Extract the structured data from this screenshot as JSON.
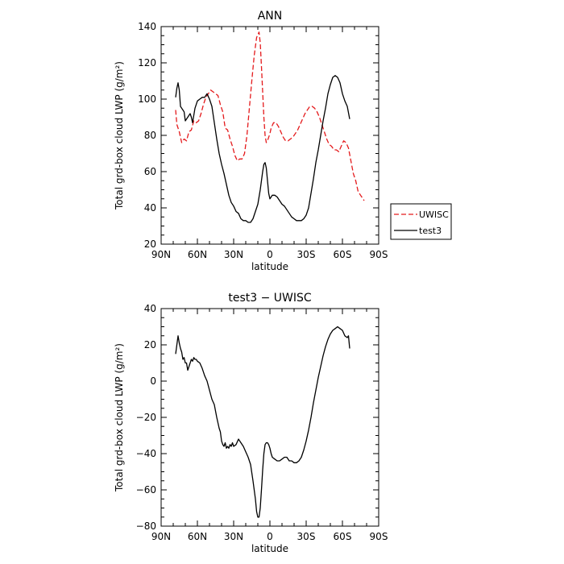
{
  "chart_data": [
    {
      "type": "line",
      "title": "ANN",
      "xlabel": "latitude",
      "ylabel": "Total grd-box cloud LWP (g/m²)",
      "xlim": [
        90,
        -90
      ],
      "ylim": [
        20,
        140
      ],
      "x_ticks": [
        "90N",
        "60N",
        "30N",
        "0",
        "30S",
        "60S",
        "90S"
      ],
      "y_ticks": [
        "20",
        "40",
        "60",
        "80",
        "100",
        "120",
        "140"
      ],
      "legend": {
        "placement": "right-outside",
        "entries": [
          "UWISC",
          "test3"
        ]
      },
      "series": [
        {
          "name": "UWISC",
          "color": "#e41a1c",
          "style": "dashed",
          "x": [
            78,
            77,
            75,
            73,
            71,
            69,
            67,
            65,
            63,
            61,
            59,
            57,
            55,
            53,
            51,
            49,
            47,
            45,
            43,
            41,
            39,
            37,
            35,
            33,
            31,
            29,
            27,
            25,
            23,
            21,
            19,
            17,
            15,
            13,
            11,
            9,
            8,
            7,
            6,
            5,
            4,
            3,
            2,
            1,
            0,
            -1,
            -3,
            -5,
            -7,
            -9,
            -11,
            -13,
            -15,
            -17,
            -19,
            -21,
            -23,
            -25,
            -27,
            -29,
            -31,
            -33,
            -35,
            -37,
            -39,
            -41,
            -43,
            -45,
            -47,
            -49,
            -51,
            -53,
            -55,
            -57,
            -59,
            -61,
            -63,
            -65,
            -67,
            -69,
            -71,
            -72,
            -73,
            -74,
            -75,
            -76,
            -77,
            -78
          ],
          "values": [
            94,
            86,
            82,
            76,
            78,
            77,
            82,
            83,
            88,
            87,
            88,
            92,
            97,
            101,
            103,
            105,
            104,
            103,
            102,
            97,
            93,
            84,
            83,
            78,
            74,
            69,
            66,
            67,
            67,
            70,
            80,
            95,
            110,
            124,
            134,
            137,
            131,
            118,
            104,
            90,
            80,
            76,
            77,
            79,
            81,
            84,
            87,
            87,
            85,
            82,
            79,
            77,
            77,
            78,
            79,
            81,
            83,
            86,
            89,
            92,
            94,
            96,
            96,
            95,
            93,
            90,
            86,
            82,
            78,
            75,
            74,
            72,
            72,
            71,
            74,
            77,
            76,
            73,
            66,
            59,
            55,
            52,
            49,
            48,
            47,
            46,
            45,
            44
          ]
        },
        {
          "name": "test3",
          "color": "#000000",
          "style": "solid",
          "x": [
            78,
            77,
            76,
            75,
            74,
            73,
            72,
            71,
            70,
            69,
            68,
            67,
            66,
            65,
            64,
            63,
            62,
            61,
            60,
            58,
            56,
            54,
            52,
            50,
            48,
            46,
            44,
            42,
            40,
            38,
            36,
            34,
            32,
            30,
            28,
            26,
            24,
            22,
            20,
            18,
            16,
            14,
            12,
            10,
            8,
            6,
            5,
            4,
            3,
            2,
            1,
            0,
            -1,
            -2,
            -4,
            -6,
            -8,
            -10,
            -12,
            -14,
            -16,
            -18,
            -20,
            -22,
            -24,
            -26,
            -28,
            -30,
            -32,
            -34,
            -36,
            -38,
            -40,
            -42,
            -44,
            -46,
            -48,
            -50,
            -52,
            -54,
            -56,
            -58,
            -60,
            -62,
            -64,
            -66
          ],
          "values": [
            101,
            106,
            109,
            105,
            96,
            95,
            94,
            93,
            88,
            89,
            90,
            91,
            92,
            90,
            87,
            91,
            95,
            97,
            99,
            100,
            101,
            101,
            103,
            100,
            96,
            87,
            78,
            70,
            64,
            59,
            53,
            47,
            43,
            41,
            38,
            37,
            34,
            33,
            33,
            32,
            32,
            34,
            38,
            42,
            50,
            60,
            64,
            65,
            62,
            55,
            48,
            45,
            46,
            47,
            47,
            46,
            44,
            42,
            41,
            39,
            37,
            35,
            34,
            33,
            33,
            33,
            34,
            36,
            40,
            48,
            56,
            65,
            72,
            80,
            88,
            95,
            103,
            108,
            112,
            113,
            112,
            109,
            103,
            99,
            96,
            89
          ]
        }
      ]
    },
    {
      "type": "line",
      "title": "test3 − UWISC",
      "xlabel": "latitude",
      "ylabel": "Total grd-box cloud LWP (g/m²)",
      "xlim": [
        90,
        -90
      ],
      "ylim": [
        -80,
        40
      ],
      "x_ticks": [
        "90N",
        "60N",
        "30N",
        "0",
        "30S",
        "60S",
        "90S"
      ],
      "y_ticks": [
        "−80",
        "−60",
        "−40",
        "−20",
        "0",
        "20",
        "40"
      ],
      "series": [
        {
          "name": "",
          "color": "#000000",
          "style": "solid",
          "x": [
            78,
            77,
            76,
            75,
            74,
            73,
            72,
            71,
            70,
            69,
            68,
            67,
            66,
            65,
            64,
            63,
            62,
            61,
            60,
            58,
            56,
            54,
            52,
            50,
            48,
            46,
            44,
            42,
            41,
            40,
            39,
            38,
            37,
            36,
            35,
            34,
            33,
            32,
            31,
            30,
            28,
            26,
            24,
            22,
            20,
            18,
            16,
            14,
            12,
            11,
            10,
            9,
            8,
            7,
            6,
            5,
            4,
            3,
            2,
            1,
            0,
            -1,
            -2,
            -4,
            -6,
            -8,
            -10,
            -12,
            -14,
            -16,
            -18,
            -20,
            -22,
            -24,
            -26,
            -28,
            -30,
            -32,
            -34,
            -36,
            -38,
            -40,
            -42,
            -44,
            -46,
            -48,
            -50,
            -52,
            -54,
            -56,
            -58,
            -60,
            -62,
            -64,
            -65,
            -66
          ],
          "values": [
            15,
            20,
            25,
            21,
            18,
            16,
            12,
            13,
            10,
            10,
            6,
            8,
            10,
            12,
            11,
            13,
            12,
            12,
            11,
            10,
            7,
            3,
            0,
            -5,
            -10,
            -13,
            -20,
            -26,
            -28,
            -33,
            -35,
            -36,
            -34,
            -37,
            -36,
            -37,
            -35,
            -36,
            -34,
            -36,
            -35,
            -32,
            -34,
            -36,
            -39,
            -42,
            -46,
            -55,
            -65,
            -72,
            -75,
            -75,
            -70,
            -60,
            -49,
            -40,
            -35,
            -34,
            -34,
            -35,
            -37,
            -40,
            -42,
            -43,
            -44,
            -44,
            -43,
            -42,
            -42,
            -44,
            -44,
            -45,
            -45,
            -44,
            -42,
            -38,
            -33,
            -27,
            -20,
            -12,
            -5,
            2,
            8,
            14,
            19,
            23,
            26,
            28,
            29,
            30,
            29,
            28,
            25,
            24,
            25,
            18
          ]
        }
      ]
    }
  ]
}
